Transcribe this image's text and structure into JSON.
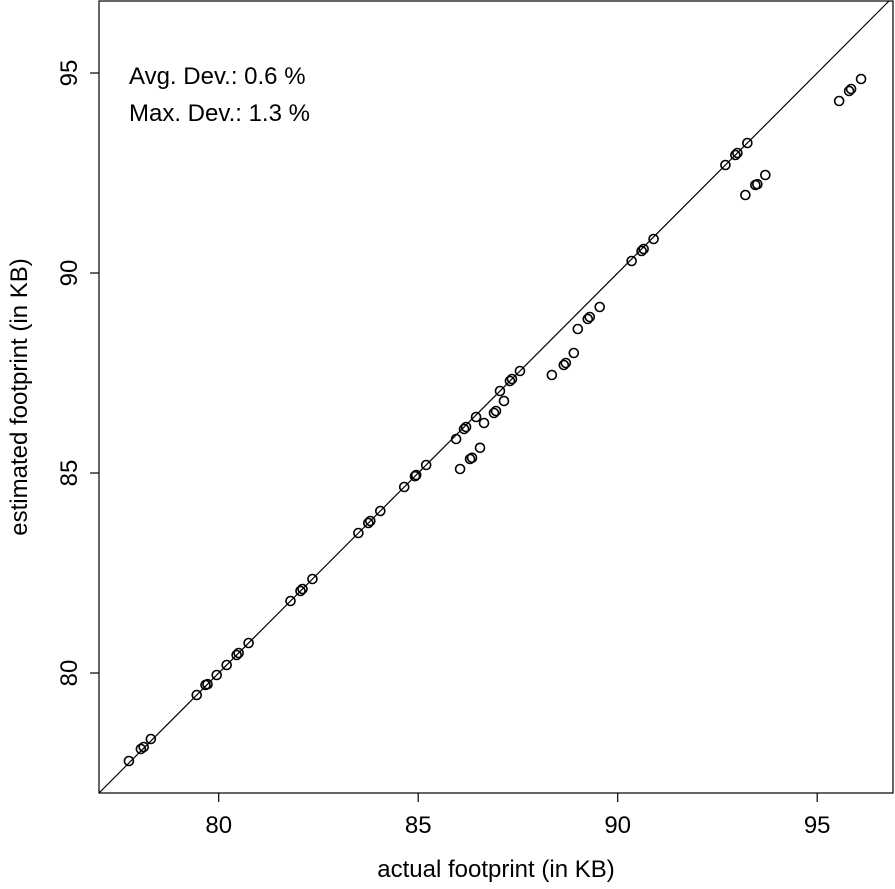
{
  "chart_data": {
    "type": "scatter",
    "title": "",
    "xlabel": "actual footprint (in KB)",
    "ylabel": "estimated footprint (in KB)",
    "xlim": [
      77.0,
      96.9
    ],
    "ylim": [
      77.0,
      96.8
    ],
    "xticks": [
      80,
      85,
      90,
      95
    ],
    "yticks": [
      80,
      85,
      90,
      95
    ],
    "grid": false,
    "legend": "none",
    "reference_line": "y = x",
    "annotations": [
      "Avg. Dev.: 0.6 %",
      "Max. Dev.: 1.3 %"
    ],
    "series": [
      {
        "marker": "open-circle",
        "color": "#000000",
        "points": [
          [
            77.75,
            77.8
          ],
          [
            78.05,
            78.1
          ],
          [
            78.12,
            78.15
          ],
          [
            78.3,
            78.35
          ],
          [
            79.45,
            79.45
          ],
          [
            79.67,
            79.7
          ],
          [
            79.72,
            79.72
          ],
          [
            79.95,
            79.95
          ],
          [
            80.2,
            80.2
          ],
          [
            80.45,
            80.45
          ],
          [
            80.5,
            80.5
          ],
          [
            80.75,
            80.75
          ],
          [
            81.8,
            81.8
          ],
          [
            82.05,
            82.05
          ],
          [
            82.1,
            82.1
          ],
          [
            82.35,
            82.35
          ],
          [
            83.5,
            83.5
          ],
          [
            83.75,
            83.75
          ],
          [
            83.8,
            83.8
          ],
          [
            84.05,
            84.05
          ],
          [
            84.65,
            84.65
          ],
          [
            84.92,
            84.92
          ],
          [
            84.95,
            84.95
          ],
          [
            85.2,
            85.2
          ],
          [
            85.95,
            85.85
          ],
          [
            86.15,
            86.1
          ],
          [
            86.2,
            86.15
          ],
          [
            86.45,
            86.4
          ],
          [
            86.05,
            85.1
          ],
          [
            86.3,
            85.35
          ],
          [
            86.35,
            85.38
          ],
          [
            86.55,
            85.63
          ],
          [
            86.65,
            86.25
          ],
          [
            86.9,
            86.5
          ],
          [
            86.95,
            86.55
          ],
          [
            87.15,
            86.8
          ],
          [
            87.05,
            87.05
          ],
          [
            87.3,
            87.3
          ],
          [
            87.35,
            87.35
          ],
          [
            87.55,
            87.55
          ],
          [
            88.35,
            87.45
          ],
          [
            88.65,
            87.7
          ],
          [
            88.7,
            87.75
          ],
          [
            88.9,
            88.0
          ],
          [
            89.0,
            88.6
          ],
          [
            89.25,
            88.85
          ],
          [
            89.3,
            88.9
          ],
          [
            89.55,
            89.15
          ],
          [
            90.35,
            90.3
          ],
          [
            90.6,
            90.55
          ],
          [
            90.65,
            90.6
          ],
          [
            90.9,
            90.85
          ],
          [
            92.7,
            92.7
          ],
          [
            92.95,
            92.95
          ],
          [
            93.0,
            93.0
          ],
          [
            93.25,
            93.25
          ],
          [
            93.2,
            91.95
          ],
          [
            93.45,
            92.2
          ],
          [
            93.5,
            92.22
          ],
          [
            93.7,
            92.45
          ],
          [
            95.55,
            94.3
          ],
          [
            95.8,
            94.55
          ],
          [
            95.85,
            94.6
          ],
          [
            96.1,
            94.85
          ]
        ]
      }
    ]
  }
}
